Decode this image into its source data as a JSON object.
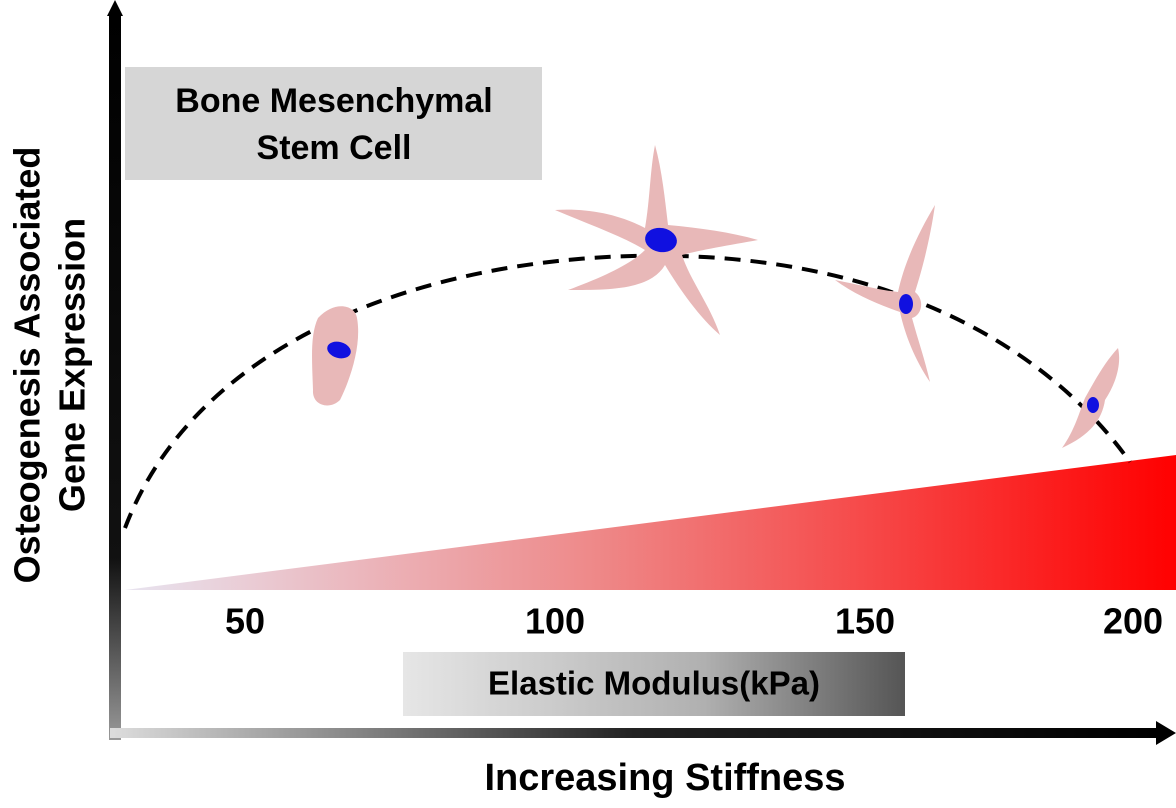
{
  "title_box": {
    "lines": [
      "Bone Mesenchymal",
      "Stem Cell"
    ]
  },
  "y_axis": {
    "lines": [
      "Osteogenesis Associated",
      "Gene Expression"
    ]
  },
  "x_ticks": [
    "50",
    "100",
    "150",
    "200"
  ],
  "x_axis_box": "Elastic Modulus(kPa)",
  "x_axis_label": "Increasing Stiffness"
}
